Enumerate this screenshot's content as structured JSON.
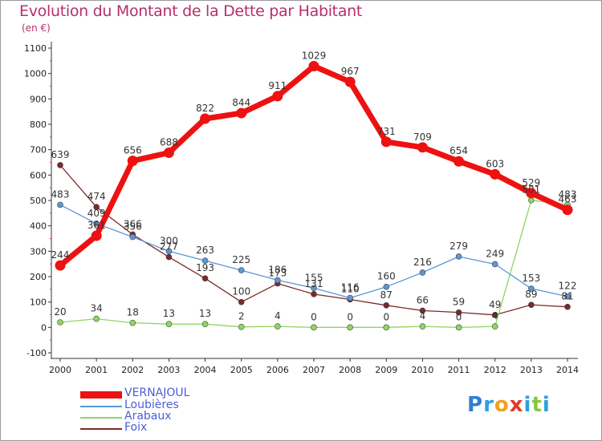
{
  "title": "Evolution du Montant de la Dette par Habitant",
  "subtitle": "(en €)",
  "logo": {
    "text": "Proxiti",
    "letters": [
      {
        "ch": "P",
        "color": "#2f7fd0"
      },
      {
        "ch": "r",
        "color": "#2f9fe0"
      },
      {
        "ch": "o",
        "color": "#f0a020"
      },
      {
        "ch": "x",
        "color": "#e03a2a"
      },
      {
        "ch": "i",
        "color": "#2f9fe0"
      },
      {
        "ch": "t",
        "color": "#8cc63f"
      },
      {
        "ch": "i",
        "color": "#2f9fe0"
      }
    ]
  },
  "chart_data": {
    "type": "line",
    "x": [
      "2000",
      "2001",
      "2002",
      "2003",
      "2004",
      "2005",
      "2006",
      "2007",
      "2008",
      "2009",
      "2010",
      "2011",
      "2012",
      "2013",
      "2014"
    ],
    "ylim": [
      -100,
      1100
    ],
    "yticks": [
      "-100",
      "0",
      "100",
      "200",
      "300",
      "400",
      "500",
      "600",
      "700",
      "800",
      "900",
      "1000",
      "1100"
    ],
    "grid": false,
    "legend_position": "bottom-left",
    "series": [
      {
        "name": "VERNAJOUL",
        "color": "#ee1111",
        "values": [
          244,
          361,
          656,
          688,
          822,
          844,
          911,
          1029,
          967,
          731,
          709,
          654,
          603,
          529,
          463
        ],
        "labels": [
          "244",
          "361",
          "656",
          "688",
          "822",
          "844",
          "911",
          "1029",
          "967",
          "731",
          "709",
          "654",
          "603",
          "529",
          "463"
        ]
      },
      {
        "name": "Loubières",
        "color": "#5a97d6",
        "values": [
          483,
          409,
          356,
          300,
          263,
          225,
          186,
          155,
          116,
          160,
          216,
          279,
          249,
          153,
          122
        ],
        "labels": [
          "483",
          "409",
          "356",
          "300",
          "263",
          "225",
          "186",
          "155",
          "116",
          "160",
          "216",
          "279",
          "249",
          "153",
          "122"
        ]
      },
      {
        "name": "Arabaux",
        "color": "#8fd660",
        "values": [
          20,
          34,
          18,
          13,
          13,
          2,
          4,
          0,
          0,
          0,
          4,
          0,
          4,
          501,
          483
        ],
        "labels": [
          "20",
          "34",
          "18",
          "13",
          "13",
          "2",
          "4",
          "0",
          "0",
          "0",
          "4",
          "0",
          "4",
          "501",
          "483"
        ]
      },
      {
        "name": "Foix",
        "color": "#7a2a2a",
        "values": [
          639,
          474,
          366,
          277,
          193,
          100,
          173,
          131,
          110,
          87,
          66,
          59,
          49,
          89,
          81
        ],
        "labels": [
          "639",
          "474",
          "366",
          "277",
          "193",
          "100",
          "173",
          "131",
          "110",
          "87",
          "66",
          "59",
          "49",
          "89",
          "81"
        ]
      }
    ]
  }
}
